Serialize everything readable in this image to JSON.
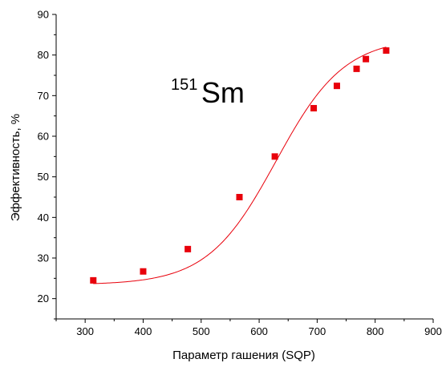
{
  "chart_data": {
    "type": "scatter",
    "xlabel": "Параметр гашения (SQP)",
    "ylabel": "Эффективность, %",
    "xlim": [
      250,
      900
    ],
    "ylim": [
      15,
      90
    ],
    "xticks": [
      300,
      400,
      500,
      600,
      700,
      800,
      900
    ],
    "yticks": [
      20,
      30,
      40,
      50,
      60,
      70,
      80,
      90
    ],
    "grid": false,
    "colors": {
      "points": "#e8000b",
      "line": "#e8000b",
      "axis": "#000000"
    },
    "annotation": {
      "sup": "151",
      "main": "Sm"
    },
    "series": [
      {
        "x": [
          314,
          400,
          477,
          566,
          627,
          694,
          734,
          768,
          784,
          819
        ],
        "y": [
          24.5,
          26.7,
          32.2,
          45.0,
          55.0,
          66.9,
          72.4,
          76.6,
          79.0,
          81.1
        ],
        "fit": "sigmoid"
      }
    ]
  }
}
